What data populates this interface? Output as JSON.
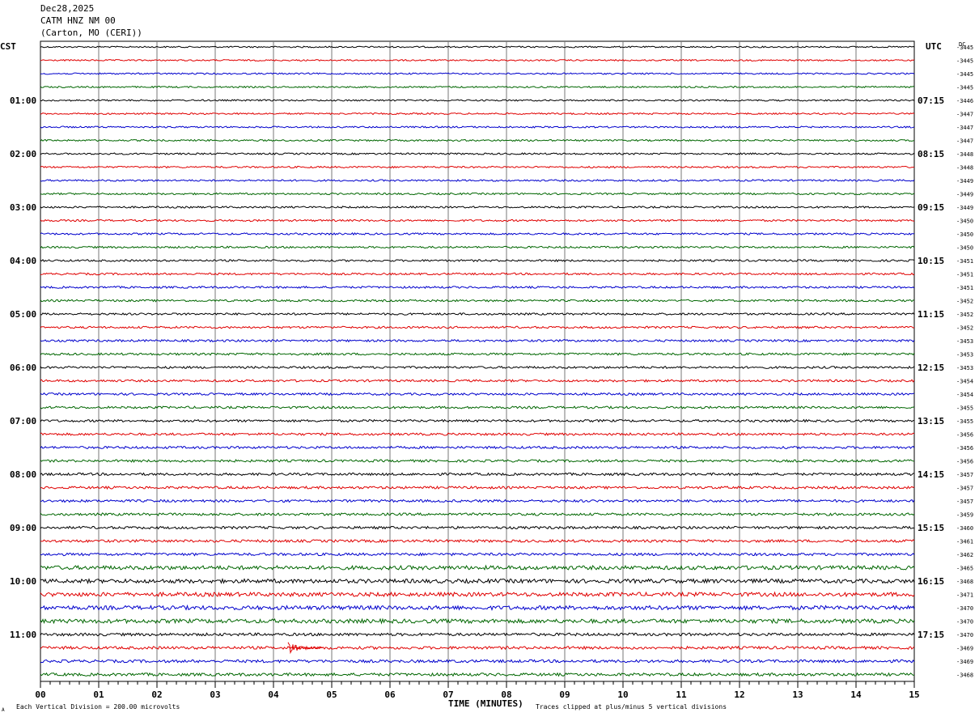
{
  "header": {
    "date": "Dec28,2025",
    "station": "CATM HNZ NM 00",
    "location": "(Carton, MO (CERI))"
  },
  "left_zone": "CST",
  "right_zone": "UTC",
  "dc_label": "DC",
  "footer": {
    "scale_note": "Each Vertical Division =  200.00 microvolts",
    "clip_note": "Traces clipped at plus/minus 5 vertical divisions",
    "corner_mark": "A"
  },
  "colors": {
    "trace_cycle": [
      "#000000",
      "#e00000",
      "#0000cc",
      "#006600"
    ],
    "grid": "#777777",
    "event": "#e00000"
  },
  "chart_data": {
    "type": "line",
    "title": "",
    "xlabel": "TIME (MINUTES)",
    "xlim": [
      0,
      15
    ],
    "x_ticks": [
      "00",
      "01",
      "02",
      "03",
      "04",
      "05",
      "06",
      "07",
      "08",
      "09",
      "10",
      "11",
      "12",
      "13",
      "14",
      "15"
    ],
    "trace_count": 48,
    "minutes_per_trace": 15,
    "left_hour_labels": [
      "01:00",
      "02:00",
      "03:00",
      "04:00",
      "05:00",
      "06:00",
      "07:00",
      "08:00",
      "09:00",
      "10:00",
      "11:00"
    ],
    "right_hour_labels": [
      "07:15",
      "08:15",
      "09:15",
      "10:15",
      "11:15",
      "12:15",
      "13:15",
      "14:15",
      "15:15",
      "16:15",
      "17:15"
    ],
    "dc_offsets": [
      -3445,
      -3445,
      -3445,
      -3445,
      -3446,
      -3447,
      -3447,
      -3447,
      -3448,
      -3448,
      -3449,
      -3449,
      -3449,
      -3450,
      -3450,
      -3450,
      -3451,
      -3451,
      -3451,
      -3452,
      -3452,
      -3452,
      -3453,
      -3453,
      -3453,
      -3454,
      -3454,
      -3455,
      -3455,
      -3456,
      -3456,
      -3456,
      -3457,
      -3457,
      -3457,
      -3459,
      -3460,
      -3461,
      -3462,
      -3465,
      -3468,
      -3471,
      -3470,
      -3470,
      -3470,
      -3469,
      -3469,
      -3468
    ],
    "event": {
      "trace_index": 45,
      "start_minute": 4.25,
      "end_minute": 4.85
    }
  }
}
